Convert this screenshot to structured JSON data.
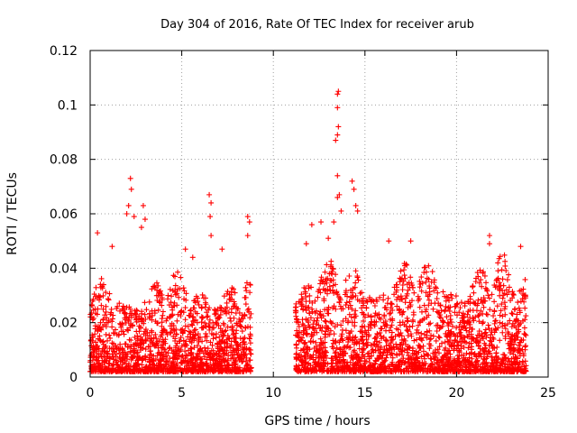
{
  "chart_data": {
    "type": "scatter",
    "title": "Day 304 of 2016, Rate Of TEC Index for receiver arub",
    "xlabel": "GPS time / hours",
    "ylabel": "ROTI / TECUs",
    "xlim": [
      0,
      25
    ],
    "ylim": [
      0,
      0.12
    ],
    "x_ticks": [
      0,
      5,
      10,
      15,
      20,
      25
    ],
    "x_tick_labels": [
      "0",
      "5",
      "10",
      "15",
      "20",
      "25"
    ],
    "y_ticks": [
      0,
      0.02,
      0.04,
      0.06,
      0.08,
      0.1,
      0.12
    ],
    "y_tick_labels": [
      "0",
      "0.02",
      "0.04",
      "0.06",
      "0.08",
      "0.1",
      "0.12"
    ],
    "grid": true,
    "marker": "+",
    "series": [
      {
        "name": "ROTI",
        "color": "#ff0000",
        "segments": [
          {
            "x_start": 0.0,
            "x_end": 8.8,
            "typical_min": 0.002,
            "typical_max": 0.035
          },
          {
            "x_start": 11.2,
            "x_end": 23.8,
            "typical_min": 0.002,
            "typical_max": 0.04
          }
        ],
        "notable_points": [
          {
            "x": 0.4,
            "y": 0.053
          },
          {
            "x": 1.2,
            "y": 0.048
          },
          {
            "x": 2.0,
            "y": 0.06
          },
          {
            "x": 2.1,
            "y": 0.063
          },
          {
            "x": 2.2,
            "y": 0.073
          },
          {
            "x": 2.25,
            "y": 0.069
          },
          {
            "x": 2.4,
            "y": 0.059
          },
          {
            "x": 2.8,
            "y": 0.055
          },
          {
            "x": 2.9,
            "y": 0.063
          },
          {
            "x": 3.0,
            "y": 0.058
          },
          {
            "x": 5.2,
            "y": 0.047
          },
          {
            "x": 5.6,
            "y": 0.044
          },
          {
            "x": 6.5,
            "y": 0.067
          },
          {
            "x": 6.6,
            "y": 0.064
          },
          {
            "x": 6.55,
            "y": 0.059
          },
          {
            "x": 6.6,
            "y": 0.052
          },
          {
            "x": 7.2,
            "y": 0.047
          },
          {
            "x": 8.6,
            "y": 0.059
          },
          {
            "x": 8.7,
            "y": 0.057
          },
          {
            "x": 8.6,
            "y": 0.052
          },
          {
            "x": 11.8,
            "y": 0.049
          },
          {
            "x": 12.1,
            "y": 0.056
          },
          {
            "x": 12.6,
            "y": 0.057
          },
          {
            "x": 13.0,
            "y": 0.051
          },
          {
            "x": 13.3,
            "y": 0.057
          },
          {
            "x": 13.4,
            "y": 0.087
          },
          {
            "x": 13.5,
            "y": 0.089
          },
          {
            "x": 13.55,
            "y": 0.092
          },
          {
            "x": 13.5,
            "y": 0.099
          },
          {
            "x": 13.5,
            "y": 0.104
          },
          {
            "x": 13.55,
            "y": 0.105
          },
          {
            "x": 13.5,
            "y": 0.074
          },
          {
            "x": 13.5,
            "y": 0.066
          },
          {
            "x": 13.6,
            "y": 0.067
          },
          {
            "x": 13.7,
            "y": 0.061
          },
          {
            "x": 14.3,
            "y": 0.072
          },
          {
            "x": 14.4,
            "y": 0.069
          },
          {
            "x": 14.5,
            "y": 0.063
          },
          {
            "x": 14.6,
            "y": 0.061
          },
          {
            "x": 16.3,
            "y": 0.05
          },
          {
            "x": 17.5,
            "y": 0.05
          },
          {
            "x": 21.8,
            "y": 0.052
          },
          {
            "x": 21.8,
            "y": 0.049
          },
          {
            "x": 23.5,
            "y": 0.048
          }
        ]
      }
    ]
  }
}
